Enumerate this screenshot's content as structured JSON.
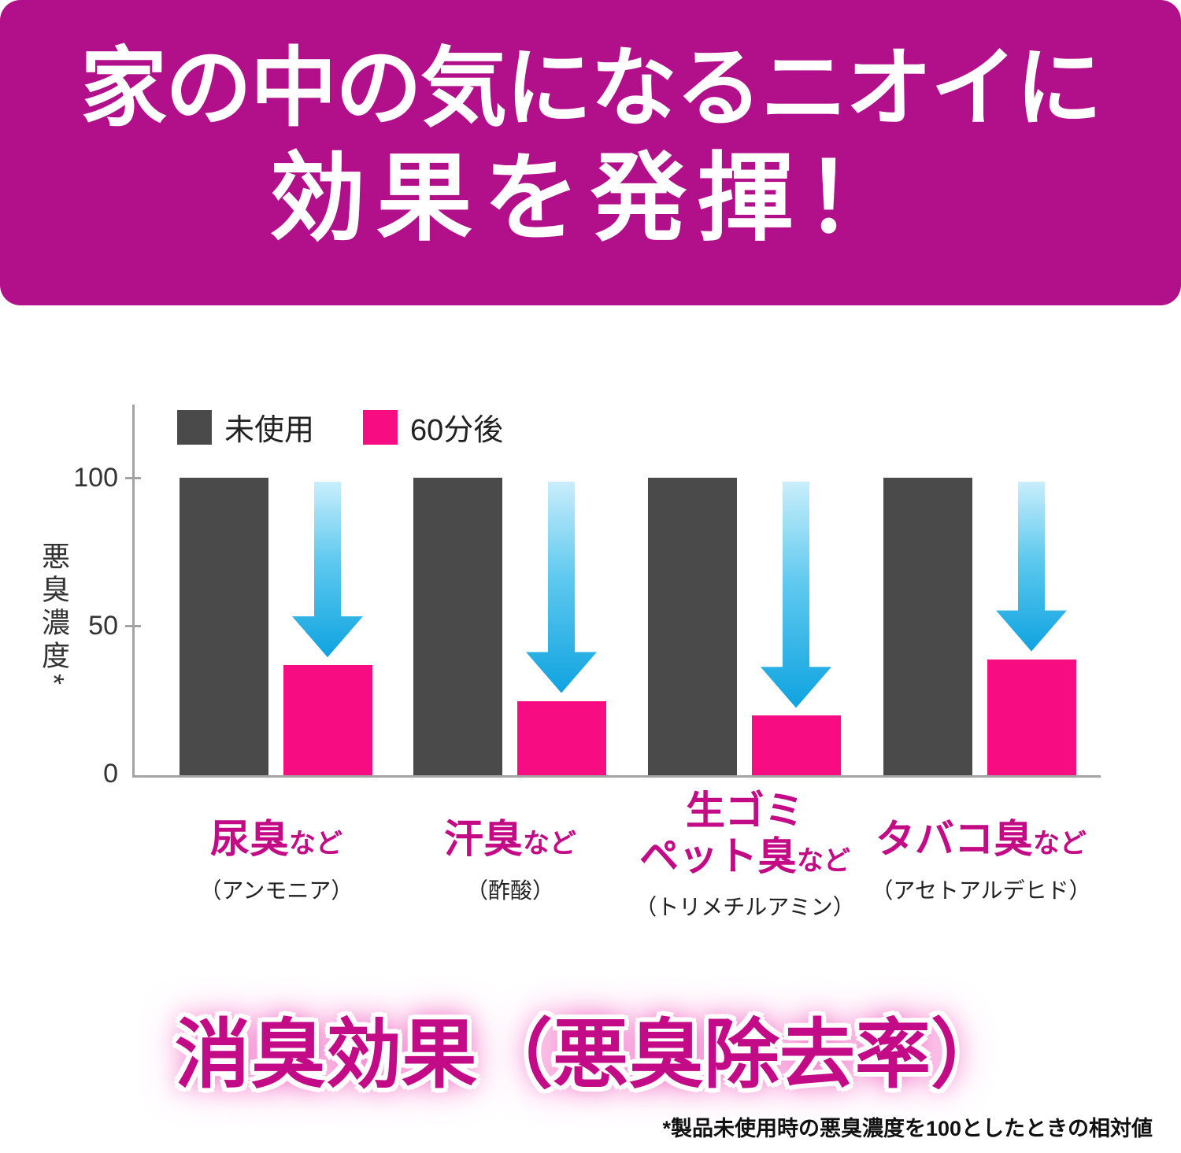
{
  "banner": {
    "line1": "家の中の気になるニオイに",
    "line2": "効果を発揮！"
  },
  "chart_data": {
    "type": "bar",
    "title": "",
    "ylabel": "悪臭濃度*",
    "yticks": [
      100,
      50,
      0
    ],
    "ylim": [
      0,
      100
    ],
    "grid": false,
    "legend_position": "top-left",
    "legend": [
      {
        "label": "未使用",
        "color": "#4a4a4b"
      },
      {
        "label": "60分後",
        "color": "#f70d81"
      }
    ],
    "categories": [
      {
        "line1": "",
        "main": "尿臭",
        "suffix": "など",
        "sub": "（アンモニア）"
      },
      {
        "line1": "",
        "main": "汗臭",
        "suffix": "など",
        "sub": "（酢酸）"
      },
      {
        "line1": "生ゴミ",
        "main": "ペット臭",
        "suffix": "など",
        "sub": "（トリメチルアミン）"
      },
      {
        "line1": "",
        "main": "タバコ臭",
        "suffix": "など",
        "sub": "（アセトアルデヒド）"
      }
    ],
    "series": [
      {
        "name": "未使用",
        "values": [
          100,
          100,
          100,
          100
        ]
      },
      {
        "name": "60分後",
        "values": [
          37,
          25,
          20,
          39
        ]
      }
    ],
    "annotations": [
      "down-arrow over each 60分後 bar"
    ]
  },
  "footer": {
    "headline": "消臭効果（悪臭除去率）",
    "footnote": "*製品未使用時の悪臭濃度を100としたときの相対値"
  },
  "colors": {
    "banner_bg": "#b2108b",
    "bar_unused": "#4a4a4b",
    "bar_after": "#f70d81",
    "arrow_top": "#c9eefb",
    "arrow_bottom": "#0fa3e0",
    "category_text": "#c30b85",
    "headline_text": "#c30b87",
    "axis": "#a3a3a3"
  }
}
